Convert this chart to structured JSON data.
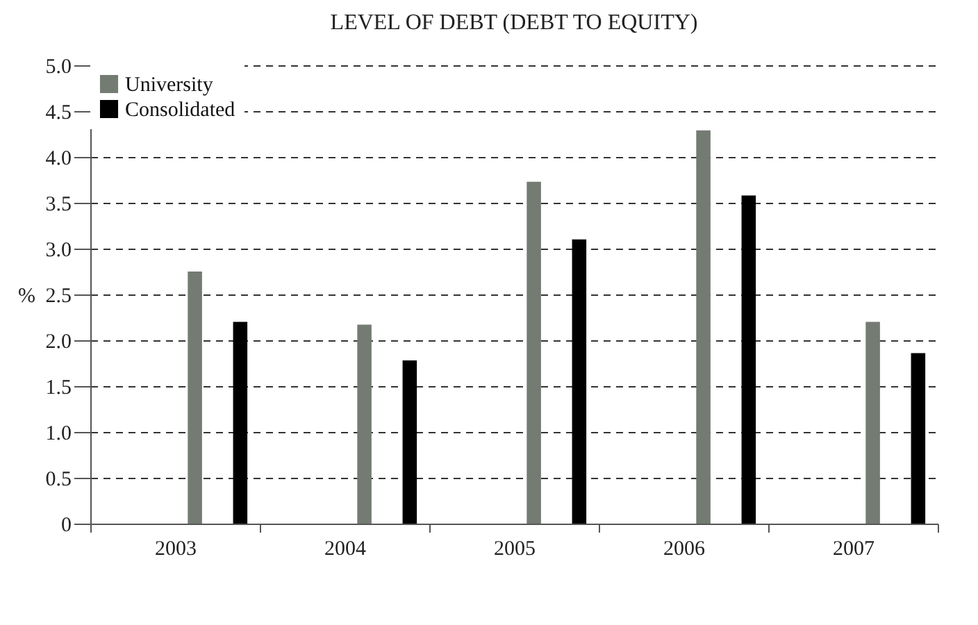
{
  "chart_data": {
    "type": "bar",
    "title": "LEVEL OF DEBT (DEBT TO EQUITY)",
    "ylabel": "%",
    "categories": [
      "2003",
      "2004",
      "2005",
      "2006",
      "2007"
    ],
    "series": [
      {
        "name": "University",
        "color": "#737b73",
        "values": [
          2.75,
          2.17,
          3.73,
          4.29,
          2.2
        ]
      },
      {
        "name": "Consolidated",
        "color": "#000000",
        "values": [
          2.2,
          1.78,
          3.1,
          3.58,
          1.86
        ]
      }
    ],
    "ylim": [
      0,
      5
    ],
    "yticks": [
      0,
      0.5,
      {
        "value": 1,
        "label": "1.0"
      },
      1.5,
      {
        "value": 2,
        "label": "2.0"
      },
      2.5,
      {
        "value": 3,
        "label": "3.0"
      },
      3.5,
      {
        "value": 4,
        "label": "4.0"
      },
      4.5,
      {
        "value": 5,
        "label": "5.0"
      }
    ],
    "grid": "y",
    "legend": "top left"
  }
}
